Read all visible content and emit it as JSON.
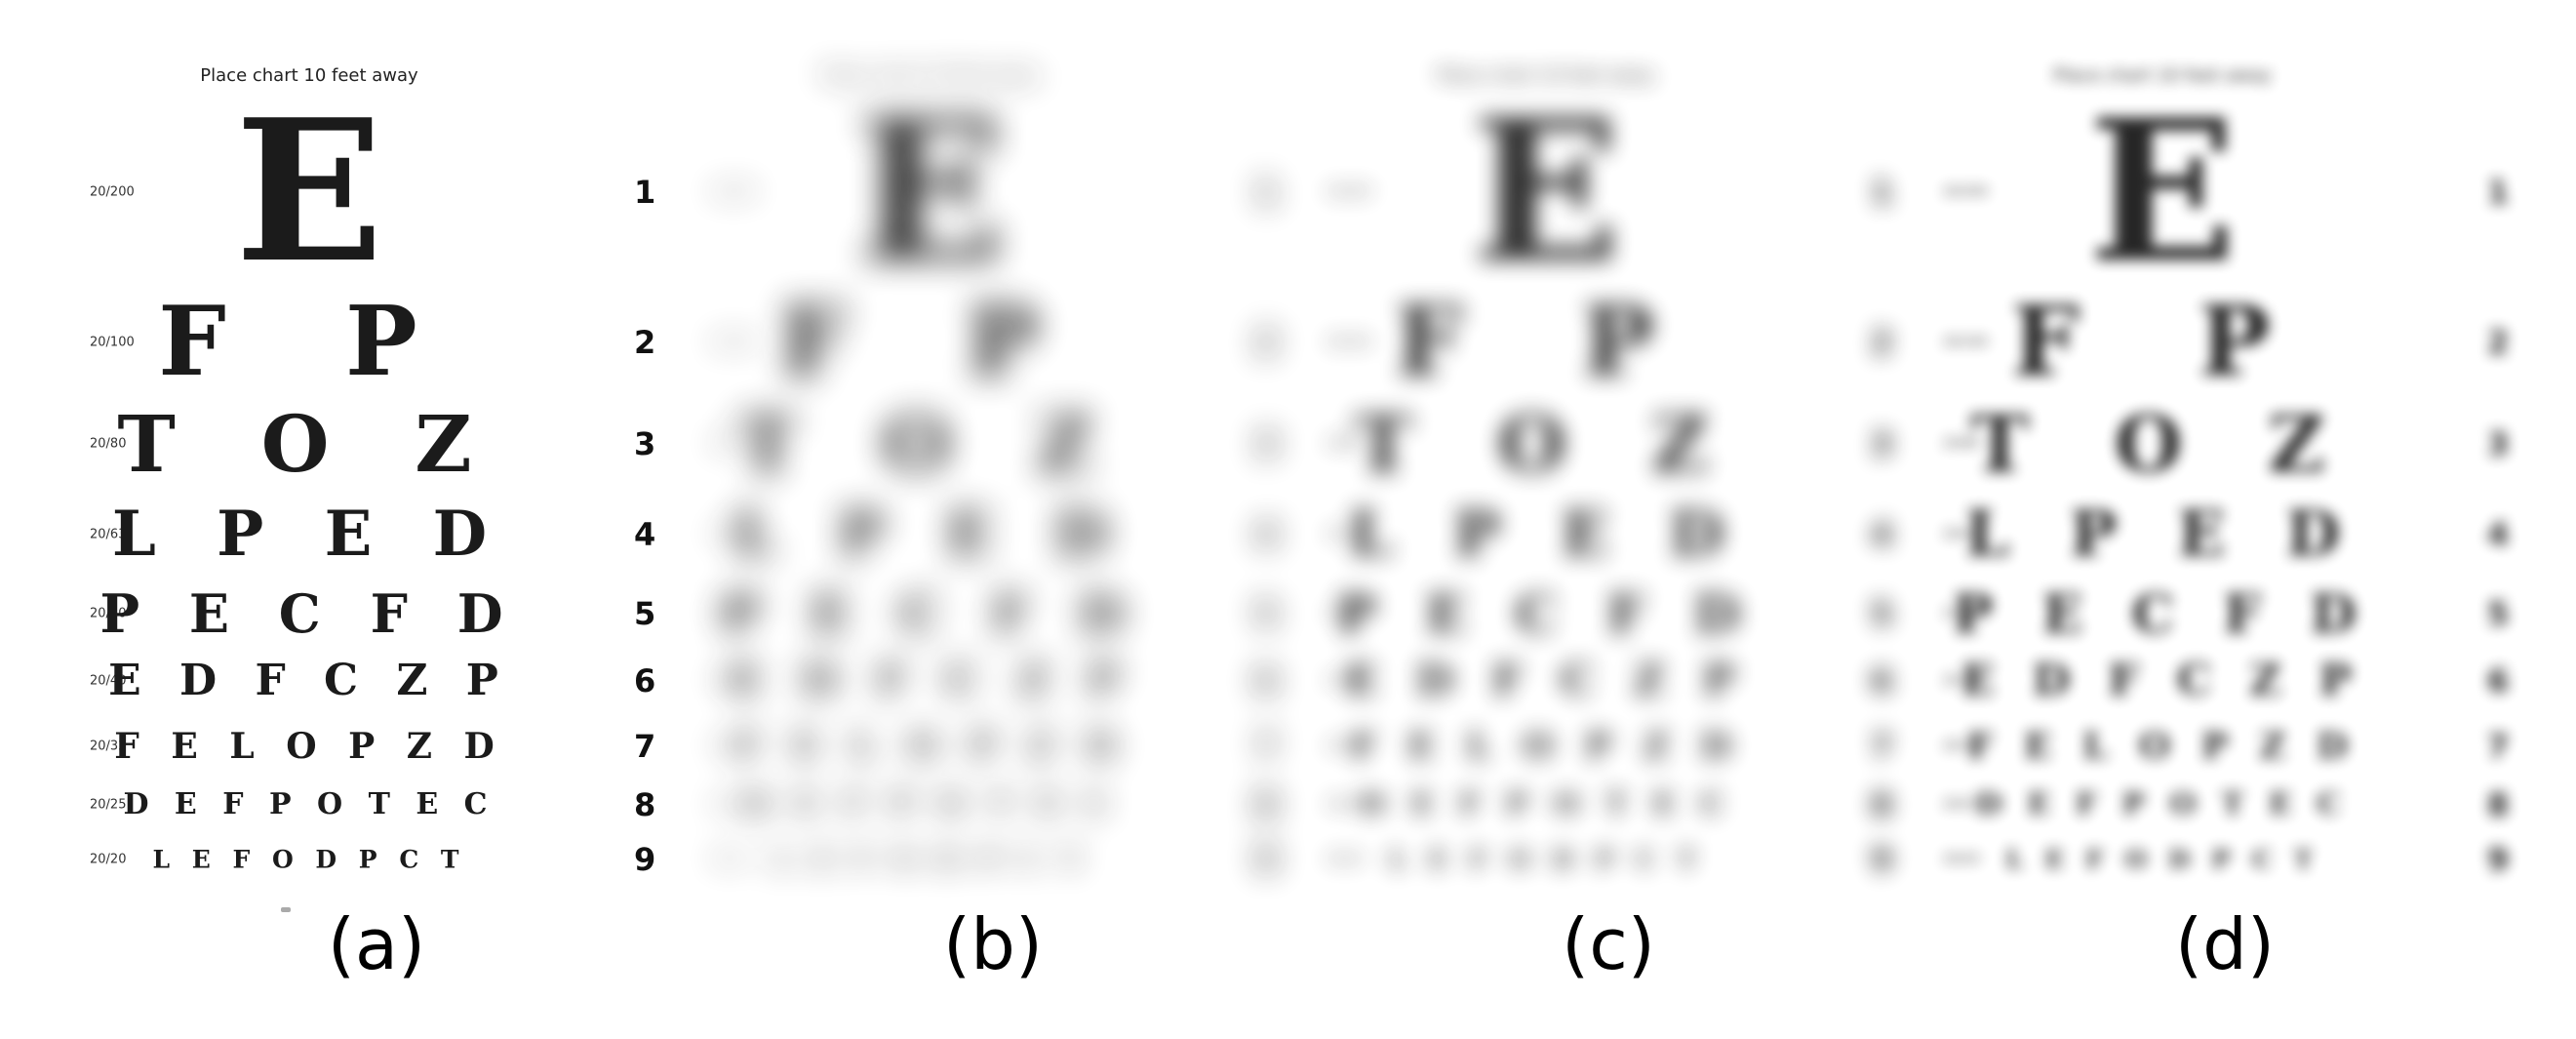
{
  "title": "Place chart 10 feet away",
  "rows": [
    {
      "acuity": "20/200",
      "letters": "E",
      "num": "1"
    },
    {
      "acuity": "20/100",
      "letters": "F P",
      "num": "2"
    },
    {
      "acuity": "20/80",
      "letters": "T O Z",
      "num": "3"
    },
    {
      "acuity": "20/63",
      "letters": "L P E D",
      "num": "4"
    },
    {
      "acuity": "20/50",
      "letters": "P E C F D",
      "num": "5"
    },
    {
      "acuity": "20/40",
      "letters": "E D F C Z P",
      "num": "6"
    },
    {
      "acuity": "20/32",
      "letters": "F E L O P Z D",
      "num": "7"
    },
    {
      "acuity": "20/25",
      "letters": "D E F P O T E C",
      "num": "8"
    },
    {
      "acuity": "20/20",
      "letters": "L E F O D P C T",
      "num": "9"
    }
  ],
  "panels": [
    {
      "id": "a",
      "caption": "(a)"
    },
    {
      "id": "b",
      "caption": "(b)"
    },
    {
      "id": "c",
      "caption": "(c)"
    },
    {
      "id": "d",
      "caption": "(d)"
    }
  ]
}
